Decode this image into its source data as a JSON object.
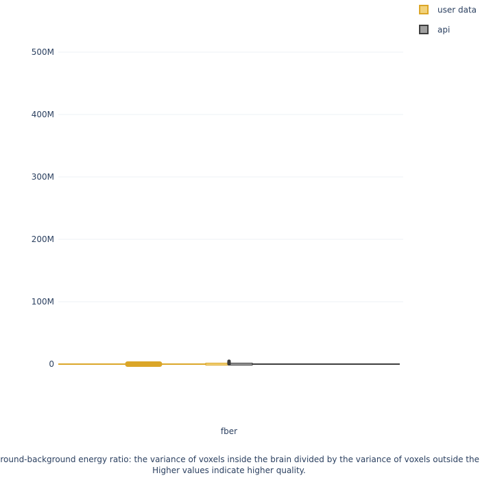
{
  "chart_data": {
    "type": "box",
    "title": "",
    "xlabel": "fber",
    "ylabel": "",
    "caption_lines": [
      "FBER: foreground-background energy ratio: the variance of voxels inside the brain divided by the variance of voxels outside the brain.",
      "Higher values indicate higher quality."
    ],
    "ylim": [
      -110000000,
      560000000
    ],
    "y_ticks": [
      0,
      100000000,
      200000000,
      300000000,
      400000000,
      500000000
    ],
    "y_tick_labels": [
      "0",
      "100M",
      "200M",
      "300M",
      "400M",
      "500M"
    ],
    "grid": true,
    "legend_position": "top-right",
    "series": [
      {
        "name": "user data",
        "color": "#dba628",
        "fill": "#f2d27a",
        "min": 0,
        "q1": 0,
        "median": 0,
        "q3": 0,
        "max": 2000000,
        "points": [
          0,
          0,
          0,
          0,
          0,
          0,
          0,
          0,
          0,
          0,
          0,
          0,
          0
        ]
      },
      {
        "name": "api",
        "color": "#3d3d3d",
        "fill": "#a0a0a0",
        "min": 0,
        "q1": 0,
        "median": 0,
        "q3": 0,
        "max": 4000000,
        "points": [
          0,
          1000000,
          2000000,
          4000000
        ]
      }
    ]
  }
}
